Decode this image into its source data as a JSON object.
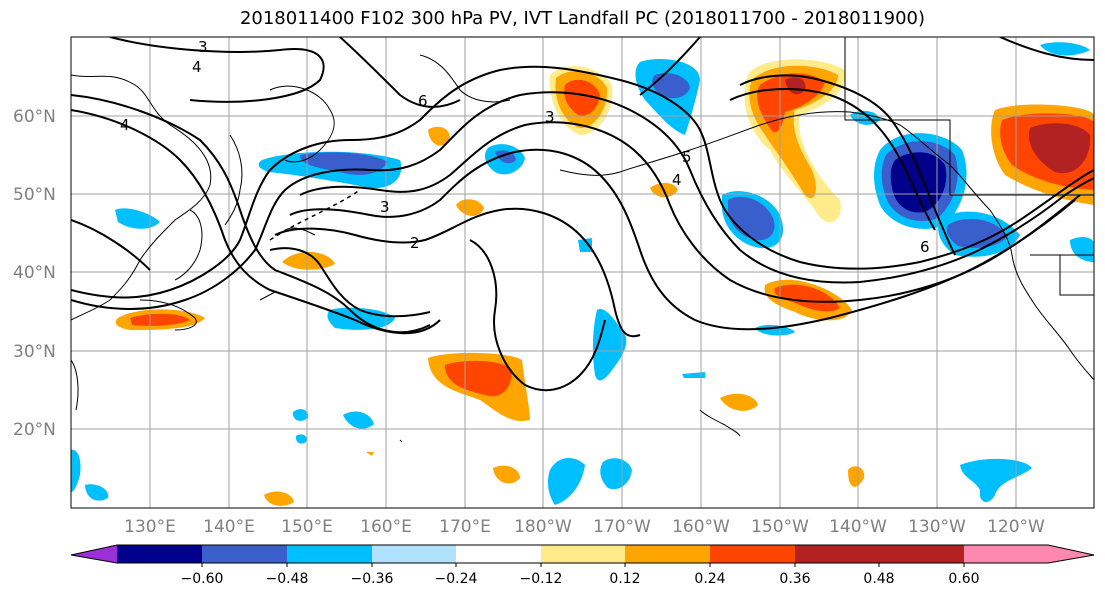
{
  "title": "2018011400 F102 300 hPa PV, IVT Landfall PC (2018011700 - 2018011900)",
  "lat_labels": [
    "60°N",
    "50°N",
    "40°N",
    "30°N",
    "20°N"
  ],
  "lon_labels": [
    "130°E",
    "140°E",
    "150°E",
    "160°E",
    "170°E",
    "180°W",
    "170°W",
    "160°W",
    "150°W",
    "140°W",
    "130°W",
    "120°W"
  ],
  "colorbar": {
    "ticks": [
      "−0.60",
      "−0.48",
      "−0.36",
      "−0.24",
      "−0.12",
      "0.12",
      "0.24",
      "0.36",
      "0.48",
      "0.60"
    ],
    "colors": [
      "#9b30d9",
      "#00008b",
      "#3a5fcd",
      "#00bfff",
      "#b0e2ff",
      "#ffffff",
      "#ffeb8a",
      "#ffa500",
      "#ff4500",
      "#b22222",
      "#ff88b0"
    ]
  },
  "contour_labels": [
    "3",
    "4",
    "4",
    "6",
    "3",
    "3",
    "2",
    "4",
    "5",
    "6"
  ]
}
